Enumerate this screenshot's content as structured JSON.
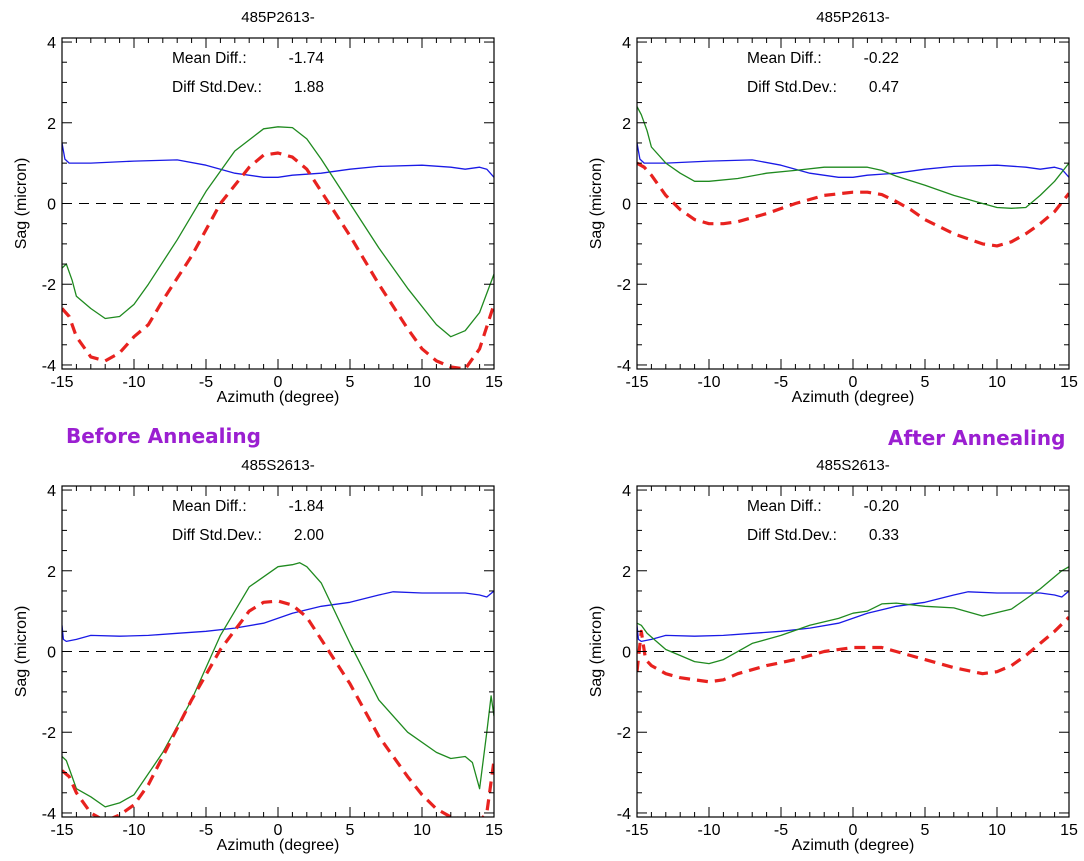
{
  "labels": {
    "before": "Before Annealing",
    "after": "After Annealing"
  },
  "colors": {
    "label": "#9b1fd1",
    "blue": "#1a1ae6",
    "green": "#1f8a1f",
    "red": "#e8221f"
  },
  "chart_data": [
    {
      "type": "line",
      "title": "485P2613-",
      "xlabel": "Azimuth (degree)",
      "ylabel": "Sag (micron)",
      "xlim": [
        -15,
        15
      ],
      "ylim": [
        -4.1,
        4.1
      ],
      "xticks": [
        -15,
        -10,
        -5,
        0,
        5,
        10,
        15
      ],
      "yticks": [
        -4,
        -2,
        0,
        2,
        4
      ],
      "reference_line": 0,
      "stats": [
        {
          "label": "Mean Diff.:",
          "value": "-1.74"
        },
        {
          "label": "Diff Std.Dev.:",
          "value": "1.88"
        }
      ],
      "series": [
        {
          "color": "blue",
          "style": "solid",
          "x": [
            -15,
            -14.8,
            -14.5,
            -13,
            -10,
            -7,
            -5,
            -3,
            -1,
            0,
            1,
            3,
            5,
            7,
            10,
            12,
            13,
            14,
            14.5,
            15
          ],
          "y": [
            1.5,
            1.1,
            1.0,
            1.0,
            1.05,
            1.08,
            0.95,
            0.75,
            0.65,
            0.65,
            0.7,
            0.75,
            0.85,
            0.92,
            0.95,
            0.9,
            0.85,
            0.9,
            0.85,
            0.65
          ]
        },
        {
          "color": "green",
          "style": "solid",
          "x": [
            -15,
            -14.7,
            -14.3,
            -14,
            -13,
            -12,
            -11,
            -10,
            -9,
            -7,
            -5,
            -3,
            -1,
            0,
            1,
            2,
            3,
            5,
            7,
            9,
            11,
            12,
            13,
            14,
            15
          ],
          "y": [
            -1.6,
            -1.5,
            -1.9,
            -2.3,
            -2.6,
            -2.85,
            -2.8,
            -2.5,
            -2.0,
            -0.9,
            0.3,
            1.3,
            1.85,
            1.9,
            1.88,
            1.6,
            1.1,
            0.0,
            -1.1,
            -2.1,
            -3.0,
            -3.3,
            -3.15,
            -2.7,
            -1.75
          ]
        },
        {
          "color": "red",
          "style": "dashed",
          "x": [
            -15,
            -14.5,
            -14,
            -13,
            -12,
            -11,
            -10,
            -9,
            -8,
            -6,
            -4,
            -2,
            -1,
            0,
            1,
            2,
            3,
            5,
            7,
            9,
            10,
            11,
            12,
            13,
            14,
            15
          ],
          "y": [
            -2.6,
            -2.8,
            -3.3,
            -3.8,
            -3.9,
            -3.7,
            -3.3,
            -3.0,
            -2.4,
            -1.3,
            0.0,
            0.9,
            1.2,
            1.25,
            1.15,
            0.85,
            0.3,
            -0.8,
            -2.0,
            -3.1,
            -3.6,
            -3.9,
            -4.05,
            -4.1,
            -3.6,
            -2.5
          ]
        }
      ]
    },
    {
      "type": "line",
      "title": "485P2613-",
      "xlabel": "Azimuth (degree)",
      "ylabel": "Sag (micron)",
      "xlim": [
        -15,
        15
      ],
      "ylim": [
        -4.1,
        4.1
      ],
      "xticks": [
        -15,
        -10,
        -5,
        0,
        5,
        10,
        15
      ],
      "yticks": [
        -4,
        -2,
        0,
        2,
        4
      ],
      "reference_line": 0,
      "stats": [
        {
          "label": "Mean Diff.:",
          "value": "-0.22"
        },
        {
          "label": "Diff Std.Dev.:",
          "value": "0.47"
        }
      ],
      "series": [
        {
          "color": "blue",
          "style": "solid",
          "x": [
            -15,
            -14.8,
            -14.5,
            -13,
            -10,
            -7,
            -5,
            -3,
            -1,
            0,
            1,
            3,
            5,
            7,
            10,
            12,
            13,
            14,
            14.5,
            15
          ],
          "y": [
            1.5,
            1.1,
            1.0,
            1.0,
            1.05,
            1.08,
            0.95,
            0.75,
            0.65,
            0.65,
            0.7,
            0.75,
            0.85,
            0.92,
            0.95,
            0.9,
            0.85,
            0.9,
            0.85,
            0.65
          ]
        },
        {
          "color": "green",
          "style": "solid",
          "x": [
            -15,
            -14.7,
            -14.3,
            -14,
            -13,
            -12,
            -11,
            -10,
            -8,
            -6,
            -4,
            -2,
            0,
            1,
            2,
            3,
            5,
            7,
            9,
            10,
            11,
            12,
            13,
            14,
            15
          ],
          "y": [
            2.4,
            2.2,
            1.8,
            1.4,
            1.0,
            0.75,
            0.55,
            0.55,
            0.62,
            0.75,
            0.82,
            0.9,
            0.9,
            0.9,
            0.82,
            0.68,
            0.45,
            0.2,
            0.0,
            -0.1,
            -0.12,
            -0.1,
            0.2,
            0.55,
            1.0
          ]
        },
        {
          "color": "red",
          "style": "dashed",
          "x": [
            -15,
            -14.5,
            -14,
            -13,
            -12,
            -11,
            -10,
            -9,
            -8,
            -6,
            -4,
            -2,
            0,
            1,
            2,
            3,
            4,
            5,
            7,
            9,
            10,
            11,
            12,
            13,
            14,
            15
          ],
          "y": [
            1.0,
            0.9,
            0.7,
            0.2,
            -0.15,
            -0.4,
            -0.5,
            -0.5,
            -0.45,
            -0.25,
            0.0,
            0.2,
            0.28,
            0.28,
            0.22,
            0.05,
            -0.15,
            -0.4,
            -0.75,
            -1.0,
            -1.05,
            -0.95,
            -0.75,
            -0.5,
            -0.2,
            0.25
          ]
        }
      ]
    },
    {
      "type": "line",
      "title": "485S2613-",
      "xlabel": "Azimuth (degree)",
      "ylabel": "Sag (micron)",
      "xlim": [
        -15,
        15
      ],
      "ylim": [
        -4.1,
        4.1
      ],
      "xticks": [
        -15,
        -10,
        -5,
        0,
        5,
        10,
        15
      ],
      "yticks": [
        -4,
        -2,
        0,
        2,
        4
      ],
      "reference_line": 0,
      "stats": [
        {
          "label": "Mean Diff.:",
          "value": "-1.84"
        },
        {
          "label": "Diff Std.Dev.:",
          "value": "2.00"
        }
      ],
      "series": [
        {
          "color": "blue",
          "style": "solid",
          "x": [
            -15,
            -14.9,
            -14.7,
            -14,
            -13,
            -11,
            -9,
            -7,
            -5,
            -3,
            -1,
            1,
            3,
            5,
            7,
            8,
            10,
            12,
            13,
            14,
            14.5,
            15
          ],
          "y": [
            0.65,
            0.3,
            0.25,
            0.3,
            0.4,
            0.38,
            0.4,
            0.45,
            0.5,
            0.58,
            0.7,
            0.95,
            1.12,
            1.22,
            1.4,
            1.48,
            1.45,
            1.45,
            1.45,
            1.4,
            1.35,
            1.5
          ]
        },
        {
          "color": "green",
          "style": "solid",
          "x": [
            -15,
            -14.7,
            -14.3,
            -14,
            -13,
            -12,
            -11,
            -10,
            -8,
            -6,
            -4,
            -2,
            0,
            1,
            1.5,
            2,
            3,
            5,
            7,
            9,
            11,
            12,
            13,
            13.5,
            14,
            14.5,
            14.8,
            15
          ],
          "y": [
            -2.6,
            -2.7,
            -3.1,
            -3.4,
            -3.6,
            -3.85,
            -3.75,
            -3.55,
            -2.5,
            -1.2,
            0.4,
            1.6,
            2.1,
            2.15,
            2.2,
            2.1,
            1.7,
            0.2,
            -1.2,
            -2.0,
            -2.5,
            -2.65,
            -2.6,
            -2.75,
            -3.4,
            -2.0,
            -1.1,
            -1.6
          ]
        },
        {
          "color": "red",
          "style": "dashed",
          "x": [
            -15,
            -14.5,
            -14,
            -13,
            -12,
            -11,
            -10,
            -9,
            -8,
            -6,
            -4,
            -2,
            -1,
            0,
            1,
            2,
            3,
            5,
            7,
            9,
            10,
            11,
            12,
            13,
            14,
            14.5,
            15
          ],
          "y": [
            -2.95,
            -3.1,
            -3.5,
            -4.0,
            -4.2,
            -4.05,
            -3.8,
            -3.3,
            -2.6,
            -1.2,
            0.05,
            1.0,
            1.22,
            1.25,
            1.15,
            0.85,
            0.3,
            -0.8,
            -2.1,
            -3.1,
            -3.55,
            -3.9,
            -4.1,
            -4.15,
            -4.2,
            -4.0,
            -2.7
          ]
        }
      ]
    },
    {
      "type": "line",
      "title": "485S2613-",
      "xlabel": "Azimuth (degree)",
      "ylabel": "Sag (micron)",
      "xlim": [
        -15,
        15
      ],
      "ylim": [
        -4.1,
        4.1
      ],
      "xticks": [
        -15,
        -10,
        -5,
        0,
        5,
        10,
        15
      ],
      "yticks": [
        -4,
        -2,
        0,
        2,
        4
      ],
      "reference_line": 0,
      "stats": [
        {
          "label": "Mean Diff.:",
          "value": "-0.20"
        },
        {
          "label": "Diff Std.Dev.:",
          "value": "0.33"
        }
      ],
      "series": [
        {
          "color": "blue",
          "style": "solid",
          "x": [
            -15,
            -14.9,
            -14.7,
            -14,
            -13,
            -11,
            -9,
            -7,
            -5,
            -3,
            -1,
            1,
            3,
            5,
            7,
            8,
            10,
            12,
            13,
            14,
            14.5,
            15
          ],
          "y": [
            0.65,
            0.3,
            0.25,
            0.3,
            0.4,
            0.38,
            0.4,
            0.45,
            0.5,
            0.58,
            0.7,
            0.95,
            1.12,
            1.22,
            1.4,
            1.48,
            1.45,
            1.45,
            1.45,
            1.4,
            1.35,
            1.5
          ]
        },
        {
          "color": "green",
          "style": "solid",
          "x": [
            -15,
            -14.7,
            -14.3,
            -13,
            -12,
            -11,
            -10,
            -9,
            -7,
            -5,
            -3,
            -1,
            0,
            1,
            2,
            3,
            5,
            7,
            9,
            11,
            12,
            13,
            14,
            14.5,
            15
          ],
          "y": [
            0.7,
            0.65,
            0.45,
            0.05,
            -0.1,
            -0.25,
            -0.3,
            -0.2,
            0.2,
            0.4,
            0.65,
            0.82,
            0.95,
            1.0,
            1.18,
            1.2,
            1.12,
            1.08,
            0.88,
            1.05,
            1.3,
            1.55,
            1.85,
            2.0,
            2.1
          ]
        },
        {
          "color": "red",
          "style": "dashed",
          "x": [
            -15,
            -14.7,
            -14.4,
            -14,
            -13,
            -12,
            -11,
            -10,
            -9,
            -8,
            -6,
            -4,
            -2,
            0,
            1,
            2,
            3,
            5,
            7,
            9,
            10,
            11,
            12,
            13,
            14,
            15
          ],
          "y": [
            -0.5,
            0.5,
            -0.2,
            -0.35,
            -0.55,
            -0.65,
            -0.7,
            -0.75,
            -0.7,
            -0.55,
            -0.35,
            -0.2,
            0.0,
            0.1,
            0.1,
            0.1,
            0.0,
            -0.2,
            -0.4,
            -0.55,
            -0.5,
            -0.35,
            -0.1,
            0.2,
            0.5,
            0.85
          ]
        }
      ]
    }
  ]
}
